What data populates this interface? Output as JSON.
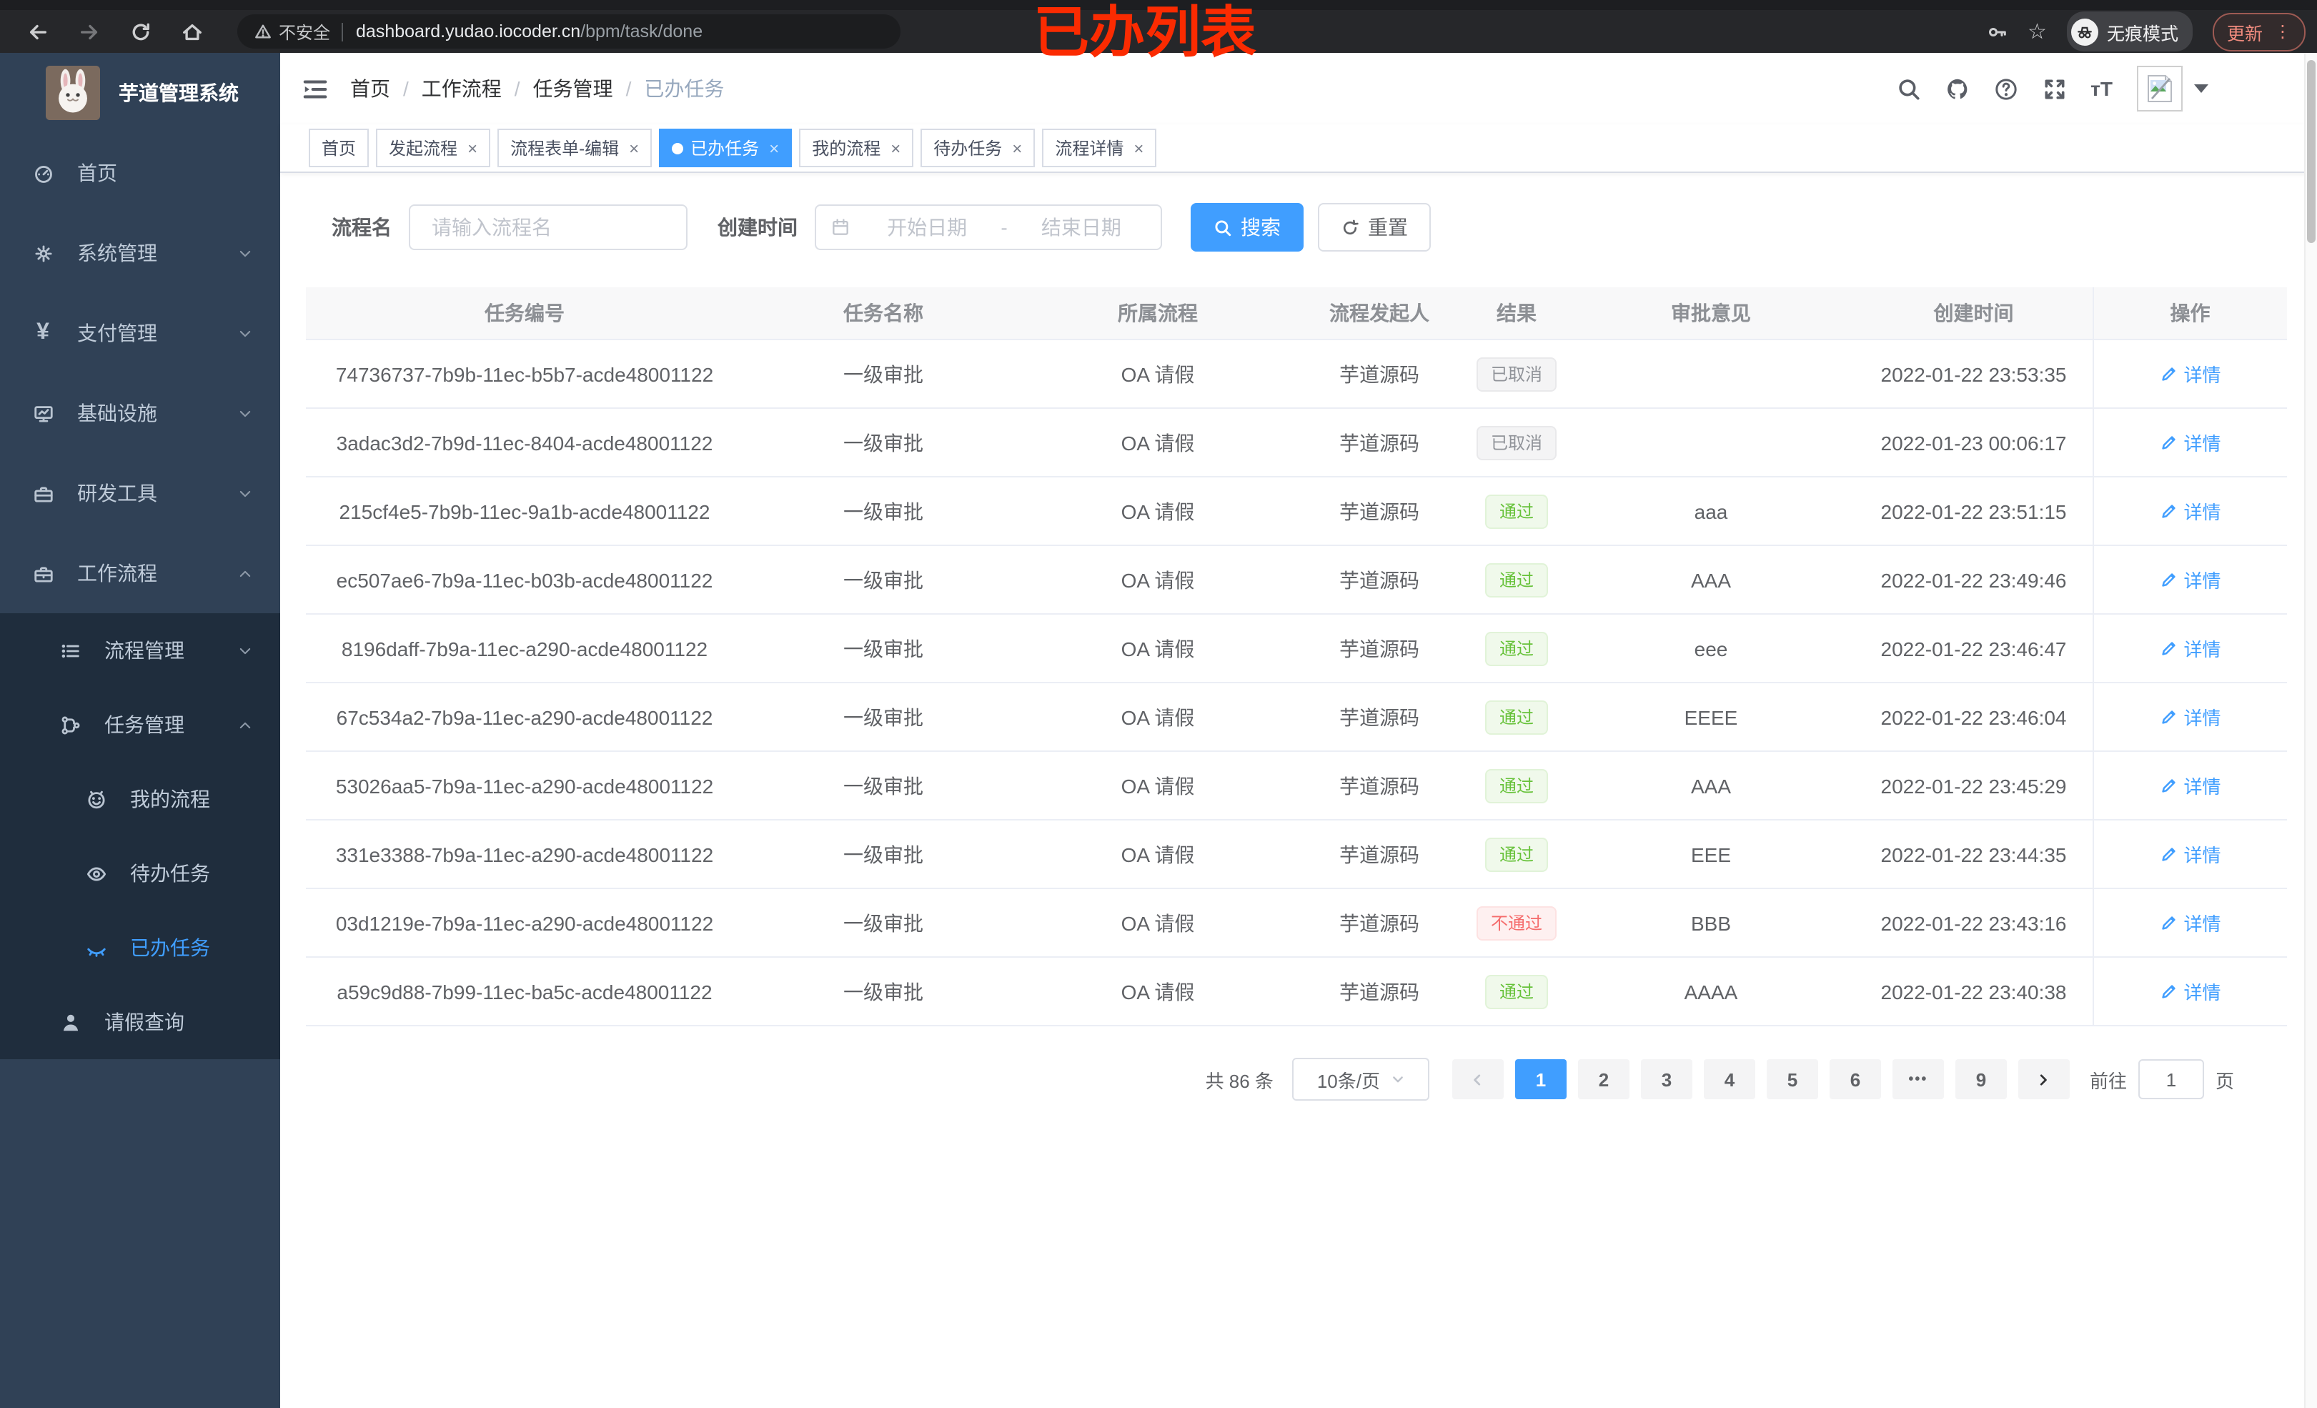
{
  "browser": {
    "security_warning": "不安全",
    "url_host": "dashboard.yudao.iocoder.cn",
    "url_path": "/bpm/task/done",
    "incognito_label": "无痕模式",
    "update_label": "更新",
    "menu_dots": "⋮"
  },
  "overlay": {
    "annotation": "已办列表",
    "color": "#fb2b01"
  },
  "colors": {
    "accent": "#409eff",
    "success": "#67c23a",
    "danger": "#f56c6c",
    "info": "#909399",
    "sidebar_bg": "#304156",
    "submenu_bg": "#1f2d3d"
  },
  "sidebar": {
    "title": "芋道管理系统",
    "menu": [
      {
        "key": "home",
        "label": "首页",
        "icon": "dashboard",
        "level": 1
      },
      {
        "key": "system",
        "label": "系统管理",
        "icon": "gear",
        "level": 1,
        "arrow": "down"
      },
      {
        "key": "payment",
        "label": "支付管理",
        "icon": "yen",
        "level": 1,
        "arrow": "down"
      },
      {
        "key": "infrastructure",
        "label": "基础设施",
        "icon": "monitor",
        "level": 1,
        "arrow": "down"
      },
      {
        "key": "dev-tools",
        "label": "研发工具",
        "icon": "toolbox",
        "level": 1,
        "arrow": "down"
      },
      {
        "key": "workflow",
        "label": "工作流程",
        "icon": "briefcase",
        "level": 1,
        "arrow": "up"
      },
      {
        "key": "process-mgmt",
        "label": "流程管理",
        "icon": "list",
        "level": 2,
        "arrow": "down",
        "dark": true
      },
      {
        "key": "task-mgmt",
        "label": "任务管理",
        "icon": "tree",
        "level": 2,
        "arrow": "up",
        "dark": true
      },
      {
        "key": "my-process",
        "label": "我的流程",
        "icon": "face",
        "level": 3,
        "dark": true
      },
      {
        "key": "todo-tasks",
        "label": "待办任务",
        "icon": "eye-open",
        "level": 3,
        "dark": true
      },
      {
        "key": "done-tasks",
        "label": "已办任务",
        "icon": "eye-close",
        "level": 3,
        "dark": true,
        "active": true
      },
      {
        "key": "leave-query",
        "label": "请假查询",
        "icon": "user",
        "level": 2,
        "dark": true
      }
    ]
  },
  "breadcrumb": [
    "首页",
    "工作流程",
    "任务管理",
    "已办任务"
  ],
  "tabs": [
    {
      "label": "首页",
      "closable": false,
      "active": false
    },
    {
      "label": "发起流程",
      "closable": true,
      "active": false
    },
    {
      "label": "流程表单-编辑",
      "closable": true,
      "active": false
    },
    {
      "label": "已办任务",
      "closable": true,
      "active": true
    },
    {
      "label": "我的流程",
      "closable": true,
      "active": false
    },
    {
      "label": "待办任务",
      "closable": true,
      "active": false
    },
    {
      "label": "流程详情",
      "closable": true,
      "active": false
    }
  ],
  "filters": {
    "name_label": "流程名",
    "name_placeholder": "请输入流程名",
    "time_label": "创建时间",
    "start_placeholder": "开始日期",
    "range_separator": "-",
    "end_placeholder": "结束日期",
    "search_label": "搜索",
    "reset_label": "重置"
  },
  "table": {
    "columns": [
      "任务编号",
      "任务名称",
      "所属流程",
      "流程发起人",
      "结果",
      "审批意见",
      "创建时间",
      "操作"
    ],
    "detail_label": "详情",
    "rows": [
      {
        "id": "74736737-7b9b-11ec-b5b7-acde48001122",
        "name": "一级审批",
        "process": "OA 请假",
        "starter": "芋道源码",
        "result": "已取消",
        "result_type": "info",
        "comment": "",
        "created": "2022-01-22 23:53:35"
      },
      {
        "id": "3adac3d2-7b9d-11ec-8404-acde48001122",
        "name": "一级审批",
        "process": "OA 请假",
        "starter": "芋道源码",
        "result": "已取消",
        "result_type": "info",
        "comment": "",
        "created": "2022-01-23 00:06:17"
      },
      {
        "id": "215cf4e5-7b9b-11ec-9a1b-acde48001122",
        "name": "一级审批",
        "process": "OA 请假",
        "starter": "芋道源码",
        "result": "通过",
        "result_type": "success",
        "comment": "aaa",
        "created": "2022-01-22 23:51:15"
      },
      {
        "id": "ec507ae6-7b9a-11ec-b03b-acde48001122",
        "name": "一级审批",
        "process": "OA 请假",
        "starter": "芋道源码",
        "result": "通过",
        "result_type": "success",
        "comment": "AAA",
        "created": "2022-01-22 23:49:46"
      },
      {
        "id": "8196daff-7b9a-11ec-a290-acde48001122",
        "name": "一级审批",
        "process": "OA 请假",
        "starter": "芋道源码",
        "result": "通过",
        "result_type": "success",
        "comment": "eee",
        "created": "2022-01-22 23:46:47"
      },
      {
        "id": "67c534a2-7b9a-11ec-a290-acde48001122",
        "name": "一级审批",
        "process": "OA 请假",
        "starter": "芋道源码",
        "result": "通过",
        "result_type": "success",
        "comment": "EEEE",
        "created": "2022-01-22 23:46:04"
      },
      {
        "id": "53026aa5-7b9a-11ec-a290-acde48001122",
        "name": "一级审批",
        "process": "OA 请假",
        "starter": "芋道源码",
        "result": "通过",
        "result_type": "success",
        "comment": "AAA",
        "created": "2022-01-22 23:45:29"
      },
      {
        "id": "331e3388-7b9a-11ec-a290-acde48001122",
        "name": "一级审批",
        "process": "OA 请假",
        "starter": "芋道源码",
        "result": "通过",
        "result_type": "success",
        "comment": "EEE",
        "created": "2022-01-22 23:44:35"
      },
      {
        "id": "03d1219e-7b9a-11ec-a290-acde48001122",
        "name": "一级审批",
        "process": "OA 请假",
        "starter": "芋道源码",
        "result": "不通过",
        "result_type": "danger",
        "comment": "BBB",
        "created": "2022-01-22 23:43:16"
      },
      {
        "id": "a59c9d88-7b99-11ec-ba5c-acde48001122",
        "name": "一级审批",
        "process": "OA 请假",
        "starter": "芋道源码",
        "result": "通过",
        "result_type": "success",
        "comment": "AAAA",
        "created": "2022-01-22 23:40:38"
      }
    ]
  },
  "pagination": {
    "total_text": "共 86 条",
    "page_size": "10条/页",
    "pages": [
      "1",
      "2",
      "3",
      "4",
      "5",
      "6",
      "•••",
      "9"
    ],
    "active_page": "1",
    "goto_label": "前往",
    "goto_value": "1",
    "page_suffix": "页"
  }
}
